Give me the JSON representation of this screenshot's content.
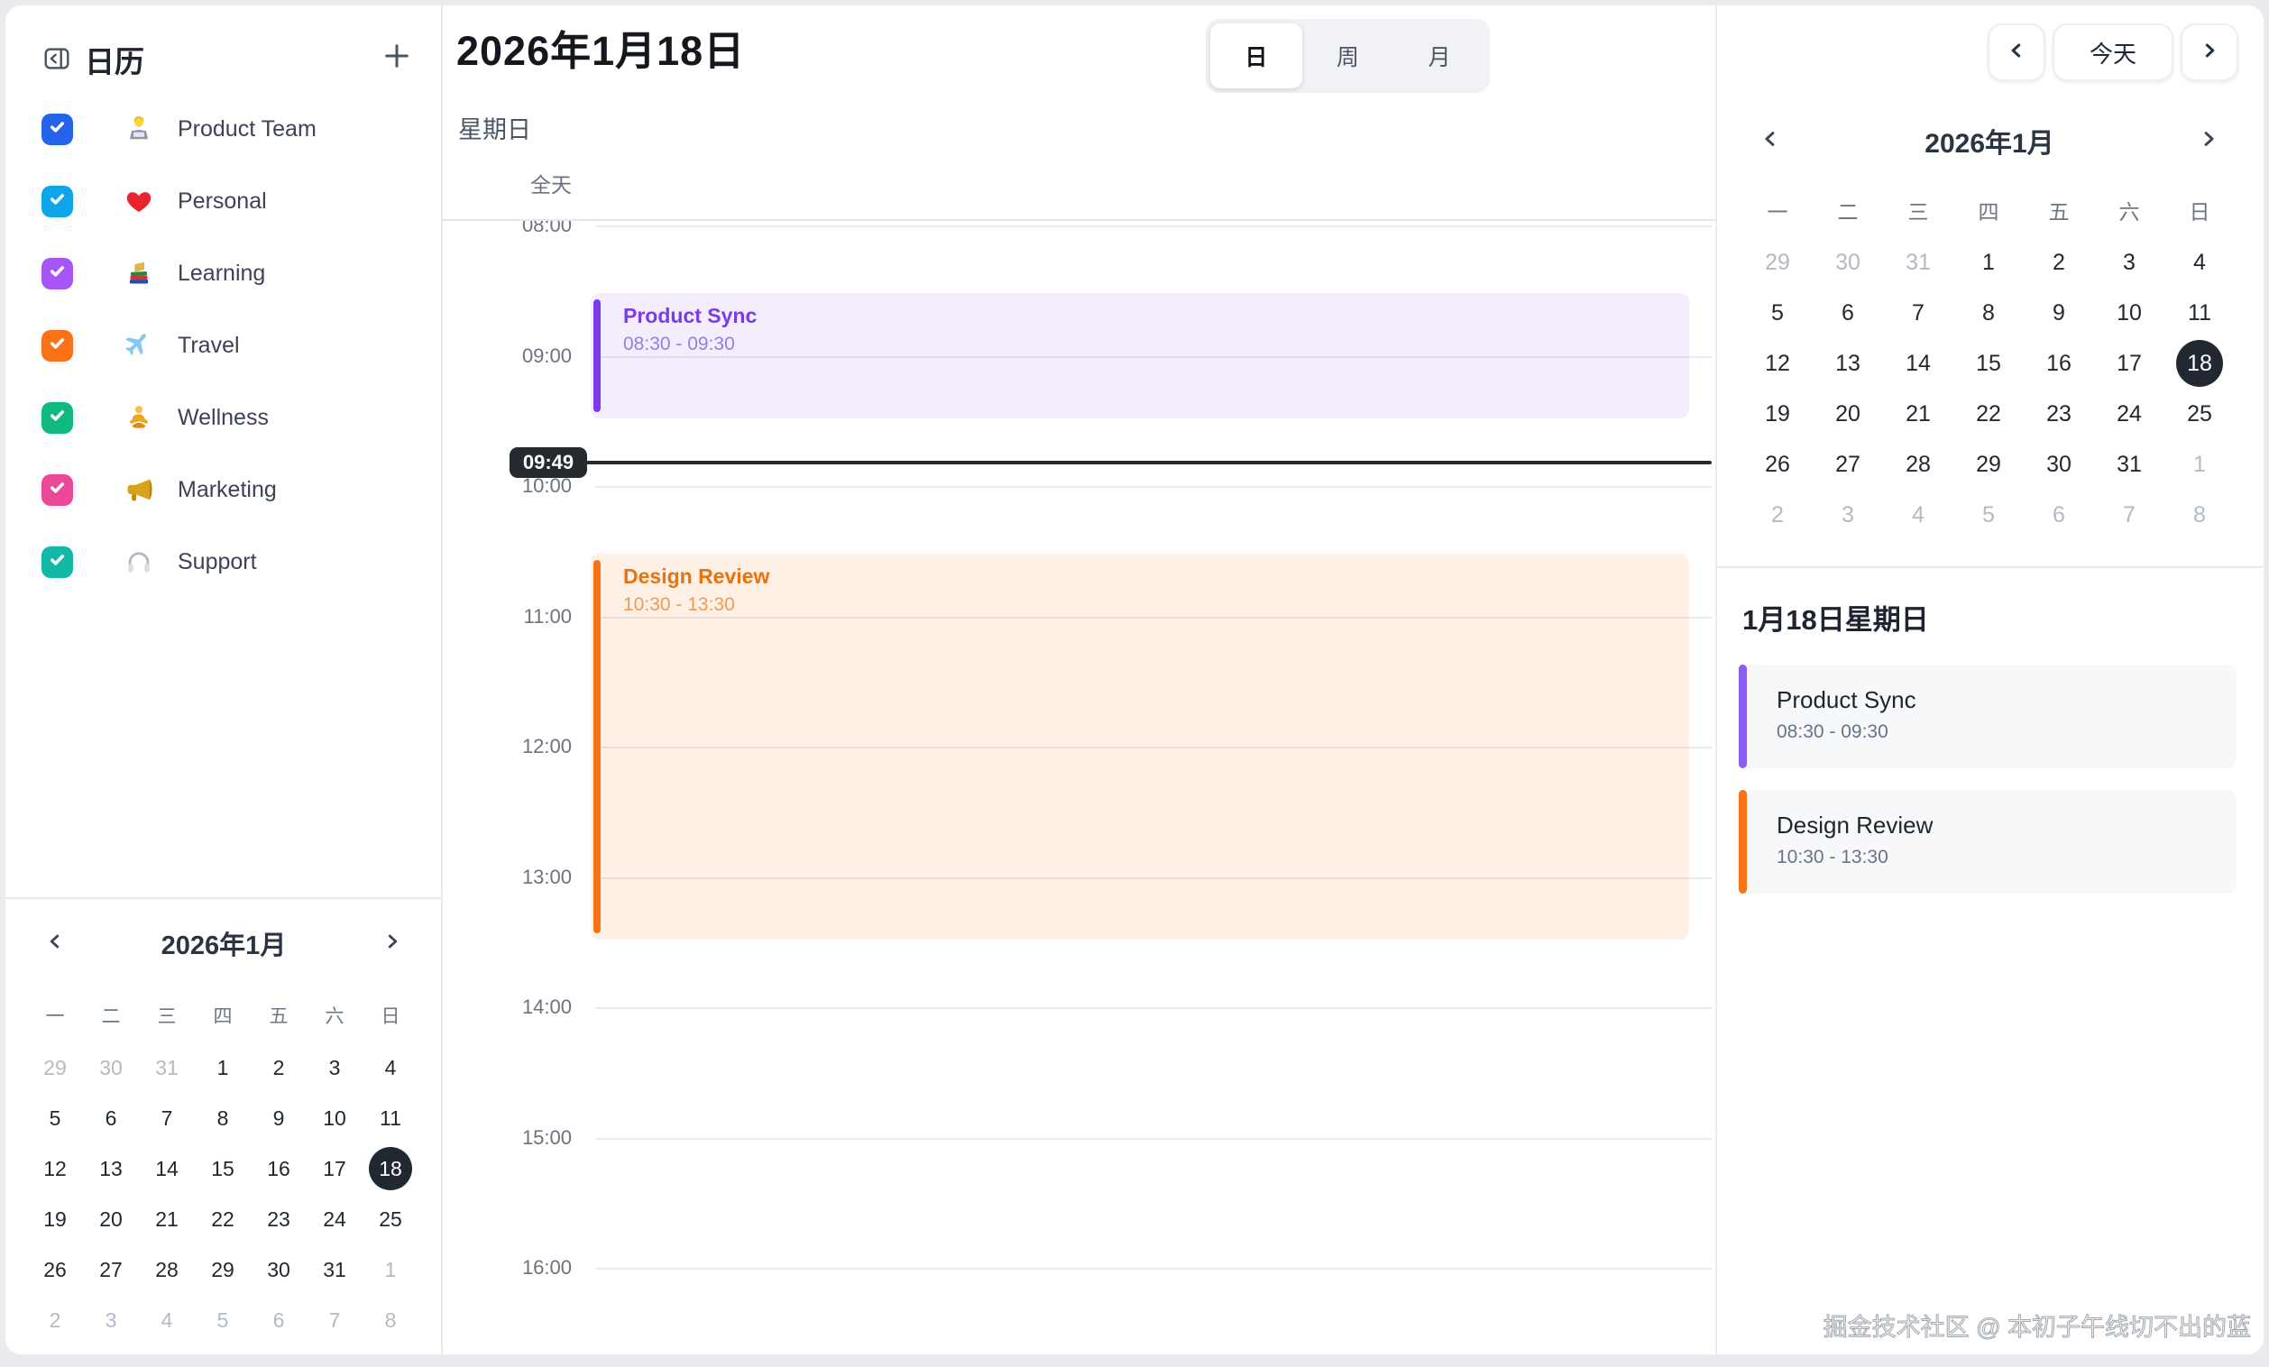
{
  "sidebar": {
    "title": "日历",
    "calendars": [
      {
        "label": "Product Team",
        "icon": "technologist-emoji",
        "color": "#2563eb",
        "checked": true
      },
      {
        "label": "Personal",
        "icon": "heart-emoji",
        "color": "#0ea5e9",
        "checked": true
      },
      {
        "label": "Learning",
        "icon": "books-emoji",
        "color": "#a855f7",
        "checked": true
      },
      {
        "label": "Travel",
        "icon": "airplane-emoji",
        "color": "#f97316",
        "checked": true
      },
      {
        "label": "Wellness",
        "icon": "meditation-emoji",
        "color": "#10b981",
        "checked": true
      },
      {
        "label": "Marketing",
        "icon": "megaphone-emoji",
        "color": "#ec4899",
        "checked": true
      },
      {
        "label": "Support",
        "icon": "headphones-emoji",
        "color": "#14b8a6",
        "checked": true
      }
    ]
  },
  "mini_calendar": {
    "title": "2026年1月",
    "weekdays": [
      "一",
      "二",
      "三",
      "四",
      "五",
      "六",
      "日"
    ],
    "selected_day_color": "#222831",
    "days": [
      {
        "d": "29",
        "muted": true
      },
      {
        "d": "30",
        "muted": true
      },
      {
        "d": "31",
        "muted": true
      },
      {
        "d": "1"
      },
      {
        "d": "2"
      },
      {
        "d": "3"
      },
      {
        "d": "4"
      },
      {
        "d": "5"
      },
      {
        "d": "6"
      },
      {
        "d": "7"
      },
      {
        "d": "8"
      },
      {
        "d": "9"
      },
      {
        "d": "10"
      },
      {
        "d": "11"
      },
      {
        "d": "12"
      },
      {
        "d": "13"
      },
      {
        "d": "14"
      },
      {
        "d": "15"
      },
      {
        "d": "16"
      },
      {
        "d": "17"
      },
      {
        "d": "18",
        "selected": true
      },
      {
        "d": "19"
      },
      {
        "d": "20"
      },
      {
        "d": "21"
      },
      {
        "d": "22"
      },
      {
        "d": "23"
      },
      {
        "d": "24"
      },
      {
        "d": "25"
      },
      {
        "d": "26"
      },
      {
        "d": "27"
      },
      {
        "d": "28"
      },
      {
        "d": "29"
      },
      {
        "d": "30"
      },
      {
        "d": "31"
      },
      {
        "d": "1",
        "muted": true
      },
      {
        "d": "2",
        "muted": true
      },
      {
        "d": "3",
        "muted": true
      },
      {
        "d": "4",
        "muted": true
      },
      {
        "d": "5",
        "muted": true
      },
      {
        "d": "6",
        "muted": true
      },
      {
        "d": "7",
        "muted": true
      },
      {
        "d": "8",
        "muted": true
      }
    ]
  },
  "main": {
    "title": "2026年1月18日",
    "subtitle": "星期日",
    "all_day_label": "全天",
    "tabs": [
      {
        "label": "日",
        "active": true
      },
      {
        "label": "周",
        "active": false
      },
      {
        "label": "月",
        "active": false
      }
    ],
    "hours": [
      "08:00",
      "09:00",
      "10:00",
      "11:00",
      "12:00",
      "13:00",
      "14:00",
      "15:00",
      "16:00"
    ],
    "grid_start": "08:00",
    "now": {
      "time": "09:49",
      "color": "#26292e"
    },
    "events": [
      {
        "title": "Product Sync",
        "time_label": "08:30 - 09:30",
        "start": "08:30",
        "end": "09:30",
        "bar_color": "#7c3aed",
        "title_color": "#7c3aed",
        "time_color": "#9a7ce0",
        "bg": "rgba(124,58,237,0.09)"
      },
      {
        "title": "Design Review",
        "time_label": "10:30 - 13:30",
        "start": "10:30",
        "end": "13:30",
        "bar_color": "#f97316",
        "title_color": "#e9720c",
        "time_color": "#f19a55",
        "bg": "rgba(249,115,22,0.11)"
      }
    ]
  },
  "right": {
    "prev_label": "‹",
    "today_label": "今天",
    "next_label": "›",
    "agenda": {
      "title": "1月18日星期日",
      "events": [
        {
          "title": "Product Sync",
          "time": "08:30 - 09:30",
          "color": "#8b5cf6"
        },
        {
          "title": "Design Review",
          "time": "10:30 - 13:30",
          "color": "#f97316"
        }
      ]
    },
    "watermark": "掘金技术社区 @ 本初子午线切不出的蓝"
  }
}
